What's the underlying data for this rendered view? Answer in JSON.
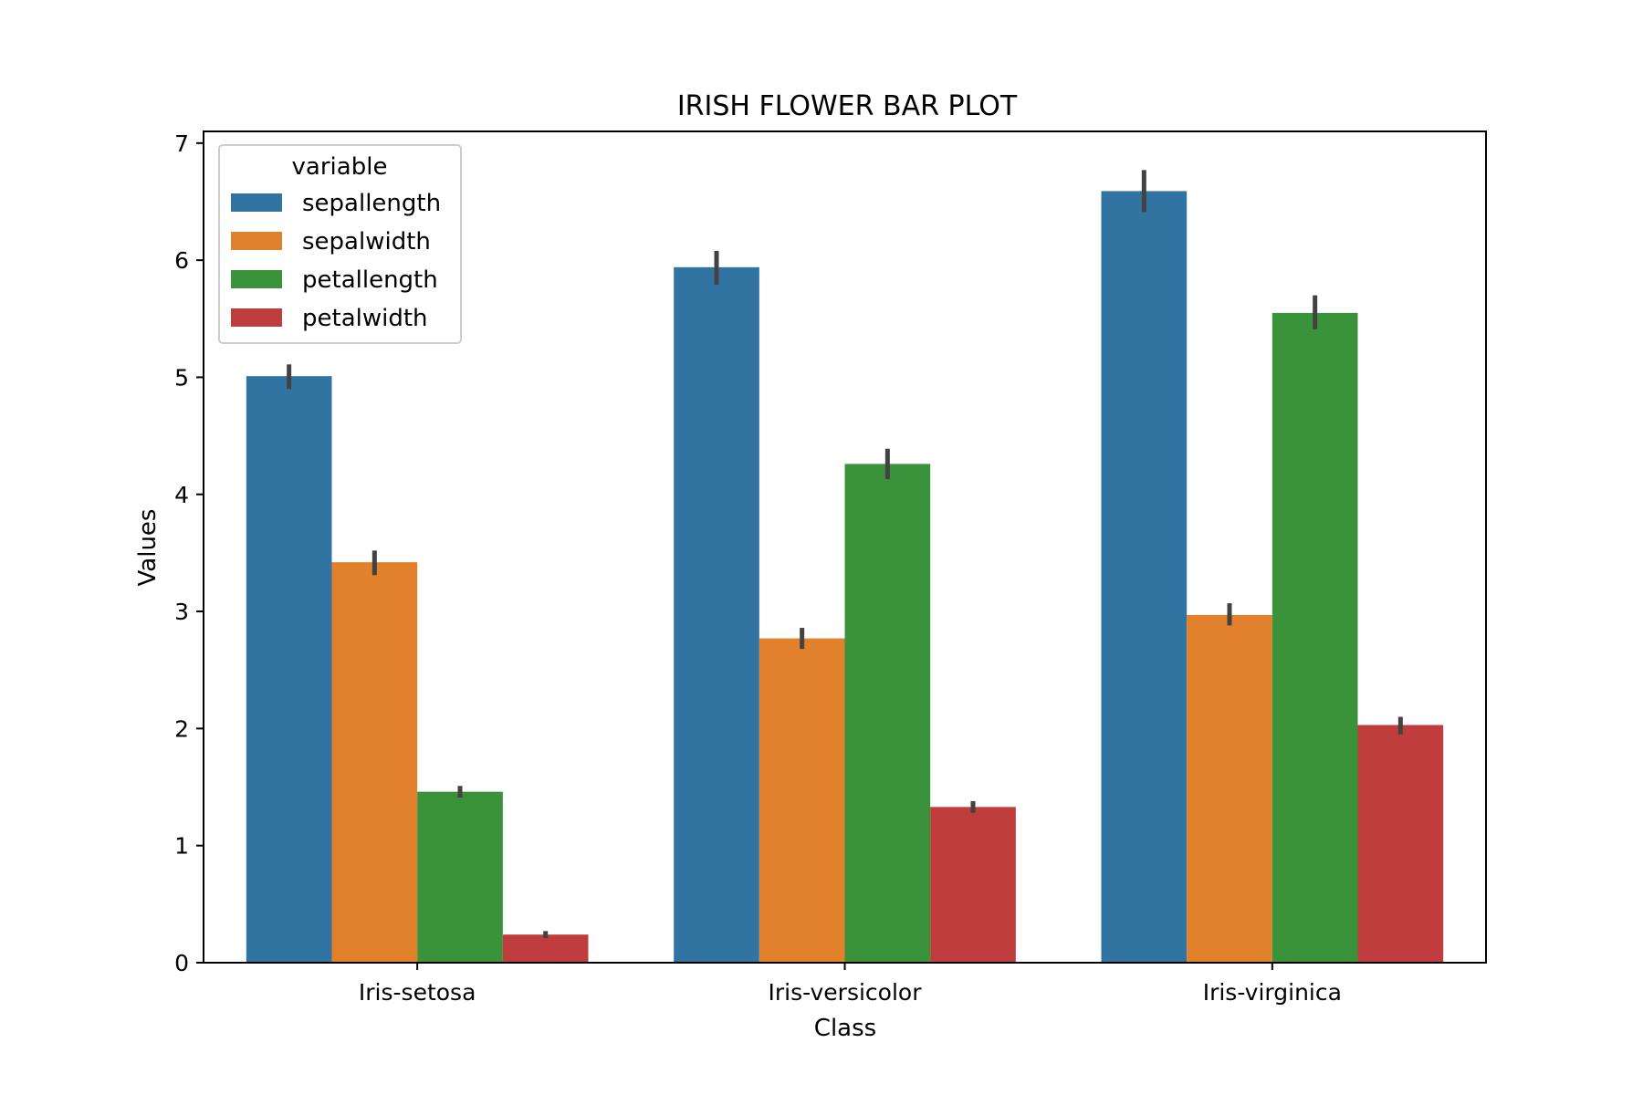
{
  "chart_data": {
    "type": "bar",
    "title": "IRISH FLOWER BAR PLOT",
    "xlabel": "Class",
    "ylabel": "Values",
    "ylim": [
      0,
      7.1
    ],
    "yticks": [
      0,
      1,
      2,
      3,
      4,
      5,
      6,
      7
    ],
    "categories": [
      "Iris-setosa",
      "Iris-versicolor",
      "Iris-virginica"
    ],
    "legend": {
      "title": "variable",
      "placement": "top-left"
    },
    "grid": false,
    "series": [
      {
        "name": "sepallength",
        "color": "#3274a1",
        "values": [
          5.01,
          5.94,
          6.59
        ],
        "ci": [
          [
            4.9,
            5.11
          ],
          [
            5.79,
            6.08
          ],
          [
            6.41,
            6.77
          ]
        ]
      },
      {
        "name": "sepalwidth",
        "color": "#e1812c",
        "values": [
          3.42,
          2.77,
          2.97
        ],
        "ci": [
          [
            3.31,
            3.52
          ],
          [
            2.68,
            2.86
          ],
          [
            2.88,
            3.07
          ]
        ]
      },
      {
        "name": "petallength",
        "color": "#3a923a",
        "values": [
          1.46,
          4.26,
          5.55
        ],
        "ci": [
          [
            1.41,
            1.51
          ],
          [
            4.13,
            4.39
          ],
          [
            5.41,
            5.7
          ]
        ]
      },
      {
        "name": "petalwidth",
        "color": "#c03d3e",
        "values": [
          0.24,
          1.33,
          2.03
        ],
        "ci": [
          [
            0.21,
            0.27
          ],
          [
            1.28,
            1.38
          ],
          [
            1.95,
            2.1
          ]
        ]
      }
    ],
    "errorbar_color": "#424242"
  }
}
